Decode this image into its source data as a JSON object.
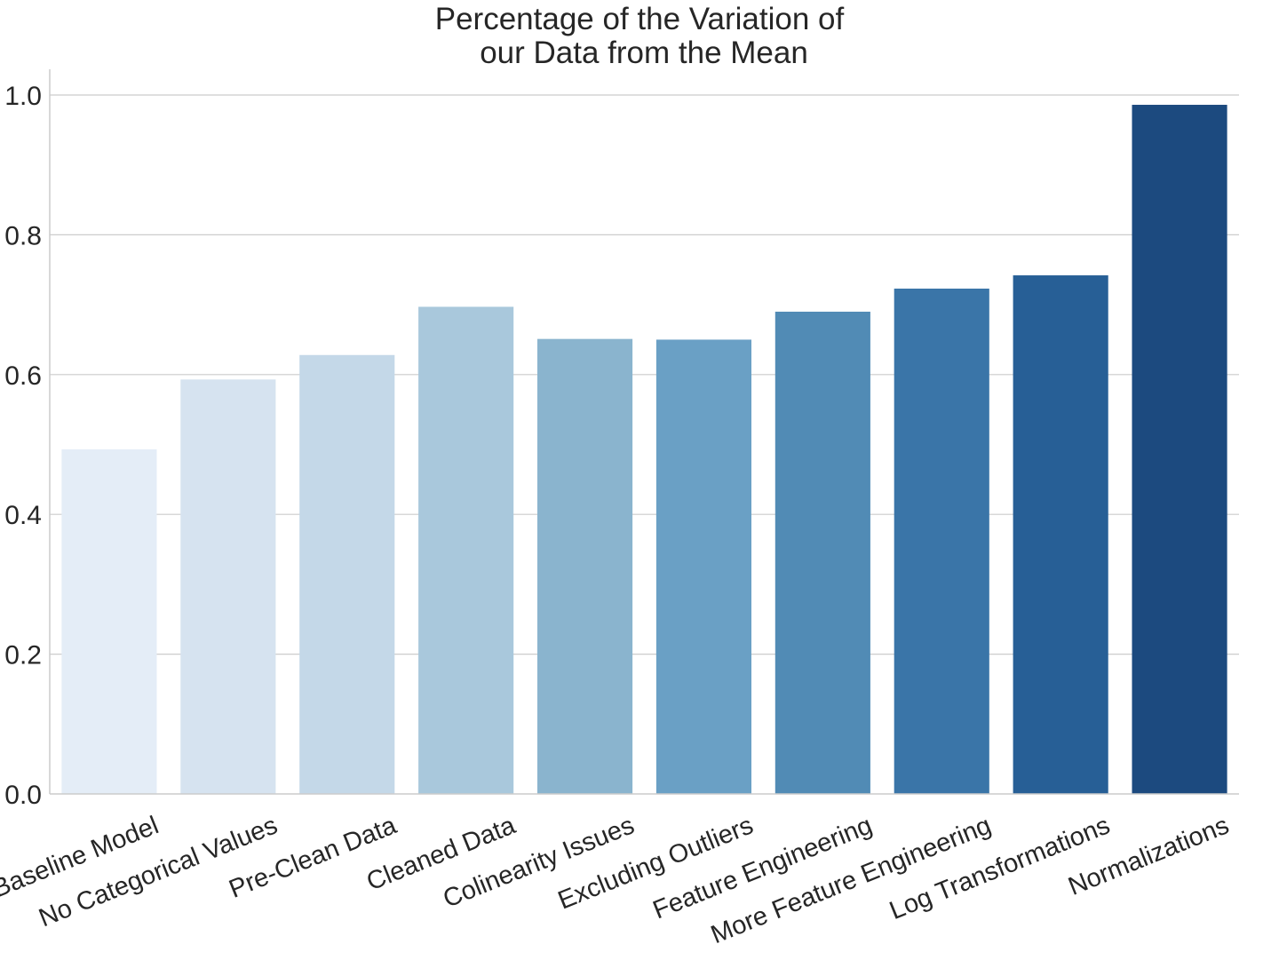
{
  "chart_data": {
    "type": "bar",
    "title_lines": [
      "Percentage of the Variation of",
      "our Data from the Mean"
    ],
    "xlabel": "",
    "ylabel": "",
    "ylim": [
      0,
      1.0
    ],
    "yticks": [
      "0.0",
      "0.2",
      "0.4",
      "0.6",
      "0.8",
      "1.0"
    ],
    "grid": "horizontal",
    "categories": [
      "Baseline Model",
      "No Categorical Values",
      "Pre-Clean Data",
      "Cleaned Data",
      "Colinearity Issues",
      "Excluding Outliers",
      "Feature Engineering",
      "More Feature Engineering",
      "Log Transformations",
      "Normalizations"
    ],
    "values": [
      0.493,
      0.593,
      0.628,
      0.697,
      0.651,
      0.65,
      0.69,
      0.723,
      0.742,
      0.986
    ],
    "colors": [
      "#e4edf7",
      "#d6e3f0",
      "#c4d8e8",
      "#a9c8dc",
      "#8ab4ce",
      "#6aa0c5",
      "#518bb5",
      "#3a75a8",
      "#275f96",
      "#1c4a7f"
    ]
  }
}
